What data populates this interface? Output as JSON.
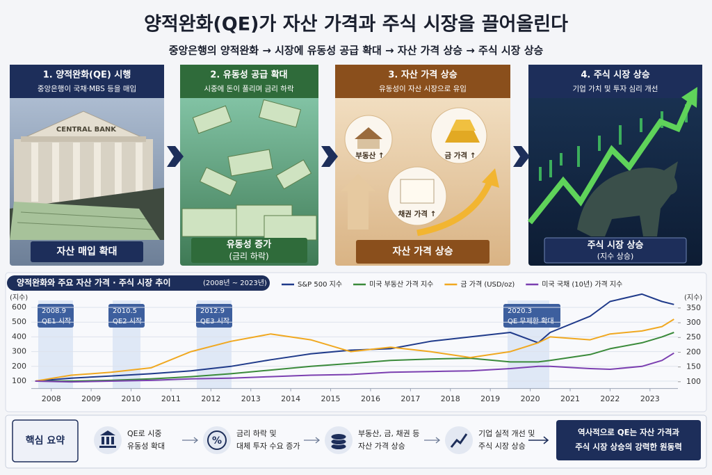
{
  "header": {
    "title": "양적완화(QE)가 자산 가격과 주식 시장을 끌어올린다",
    "subtitle": "중앙은행의 양적완화 → 시장에 유동성 공급 확대 → 자산 가격 상승 → 주식 시장 상승"
  },
  "panels": [
    {
      "title": "1. 양적완화(QE) 시행",
      "description": "중앙은행이 국채·MBS 등을 매입",
      "sign": "CENTRAL BANK",
      "caption": [
        "자산 매입 확대"
      ]
    },
    {
      "title": "2. 유동성 공급 확대",
      "description": "시중에 돈이 풀리며 금리 하락",
      "caption": [
        "유동성 증가",
        "(금리 하락)"
      ]
    },
    {
      "title": "3. 자산 가격 상승",
      "description": "유동성이 자산 시장으로 유입",
      "tags": [
        "부동산 ↑",
        "금 가격 ↑",
        "채권 가격 ↑"
      ],
      "caption": [
        "자산 가격 상승"
      ]
    },
    {
      "title": "4. 주식 시장 상승",
      "description": "기업 가치 및 투자 심리 개선",
      "caption": [
        "주식 시장 상승",
        "(지수 상승)"
      ]
    }
  ],
  "chart_data": {
    "type": "line",
    "title": "양적완화와 주요 자산 가격 · 주식 시장 추이",
    "subtitle": "(2008년 ~ 2023년)",
    "y_label": "(지수)",
    "y2_label": "(지수)",
    "grid": true,
    "x": [
      2007.6,
      2008.5,
      2009.5,
      2010.5,
      2011.5,
      2012.5,
      2013.5,
      2014.5,
      2015.5,
      2016.5,
      2017.5,
      2018.5,
      2019.5,
      2020.2,
      2020.5,
      2021.5,
      2022.0,
      2022.8,
      2023.3,
      2023.6
    ],
    "series": [
      {
        "name": "S&P 500 지수",
        "color": "#1f3a8a",
        "values": [
          100,
          120,
          135,
          150,
          170,
          200,
          245,
          285,
          310,
          320,
          370,
          400,
          430,
          360,
          430,
          540,
          640,
          690,
          640,
          620
        ]
      },
      {
        "name": "미국 부동산 가격 지수",
        "color": "#3a8a3a",
        "values": [
          100,
          100,
          105,
          115,
          130,
          150,
          175,
          200,
          220,
          240,
          250,
          255,
          230,
          230,
          240,
          280,
          320,
          360,
          400,
          430
        ]
      },
      {
        "name": "금 가격 (USD/oz)",
        "color": "#f0a820",
        "values": [
          100,
          140,
          160,
          190,
          300,
          370,
          420,
          380,
          300,
          330,
          300,
          260,
          300,
          360,
          400,
          380,
          420,
          440,
          470,
          520
        ]
      },
      {
        "name": "미국 국채 (10년) 가격 지수",
        "color": "#7b3fb0",
        "values": [
          100,
          95,
          100,
          105,
          115,
          120,
          130,
          140,
          145,
          160,
          165,
          170,
          185,
          200,
          200,
          185,
          180,
          200,
          240,
          290
        ]
      }
    ],
    "xlim": [
      2007.5,
      2023.7
    ],
    "xticks": [
      2008,
      2009,
      2010,
      2011,
      2012,
      2013,
      2014,
      2015,
      2016,
      2017,
      2018,
      2019,
      2020,
      2021,
      2022,
      2023
    ],
    "ylim": [
      50,
      700
    ],
    "yticks": [
      100,
      200,
      300,
      400,
      500,
      600
    ],
    "y2lim": [
      77,
      402
    ],
    "y2ticks": [
      100,
      150,
      200,
      250,
      300,
      350
    ],
    "annotations": [
      {
        "date": "2008.9",
        "text": "QE1 시작"
      },
      {
        "date": "2010.5",
        "text": "QE2 시작"
      },
      {
        "date": "2012.9",
        "text": "QE3 시작"
      },
      {
        "date": "2020.3",
        "text": "QE 무제한 확대"
      }
    ]
  },
  "summary": {
    "label": "핵심 요약",
    "items": [
      {
        "lines": [
          "QE로 시중",
          "유동성 확대"
        ]
      },
      {
        "icon": "%",
        "lines": [
          "금리 하락 및",
          "대체 투자 수요 증가"
        ]
      },
      {
        "lines": [
          "부동산, 금, 채권 등",
          "자산 가격 상승"
        ]
      },
      {
        "lines": [
          "기업 실적 개선 및",
          "주식 시장 상승"
        ]
      }
    ],
    "conclusion": [
      "역사적으로 QE는 자산 가격과",
      "주식 시장 상승의 강력한 원동력"
    ]
  }
}
